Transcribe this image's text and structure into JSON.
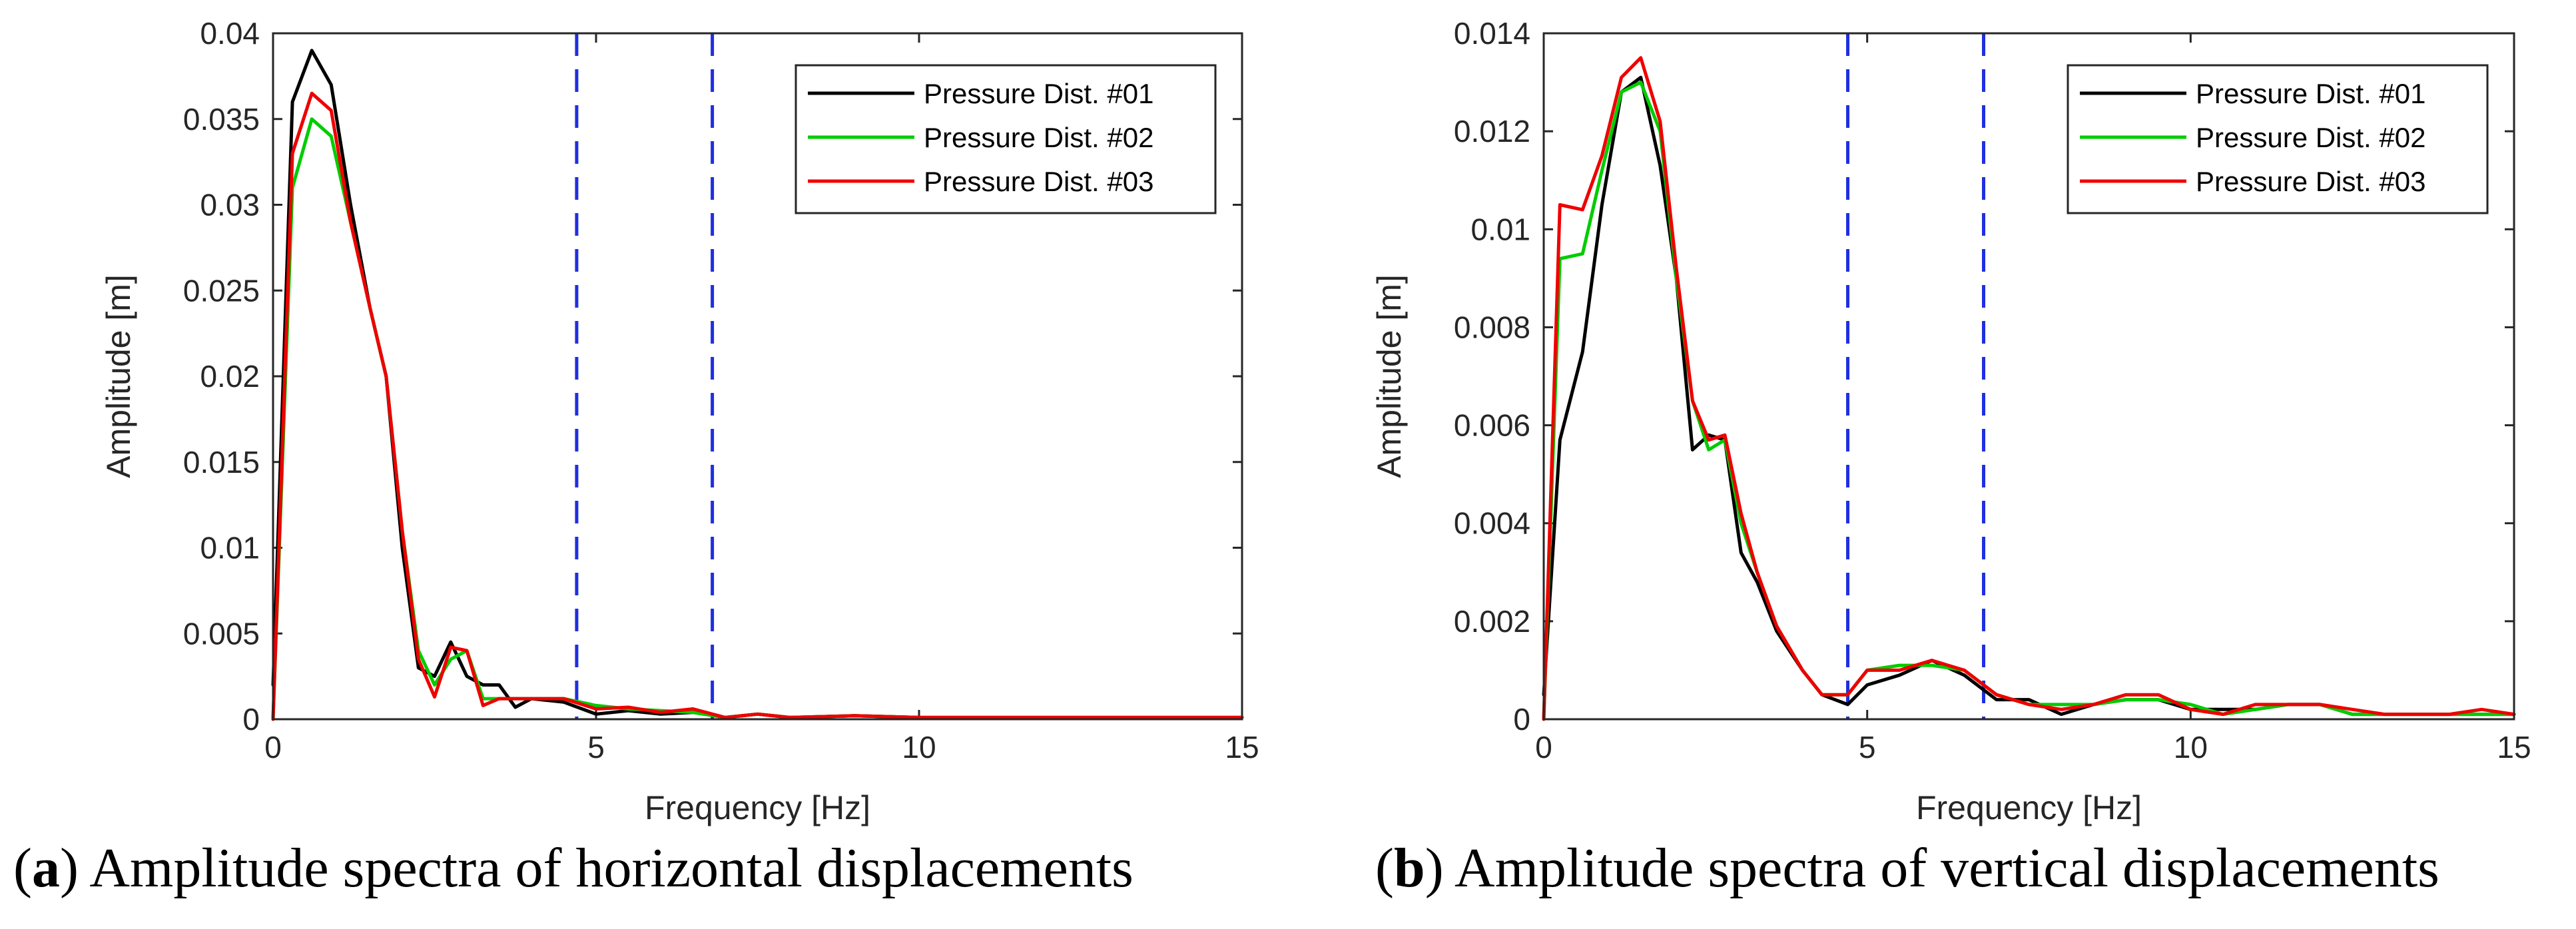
{
  "chart_data": [
    {
      "type": "line",
      "panel": "a",
      "caption_letter": "a",
      "caption_text": "Amplitude spectra of horizontal displacements",
      "xlabel": "Frequency [Hz]",
      "ylabel": "Amplitude [m]",
      "xlim": [
        0,
        15
      ],
      "ylim": [
        0,
        0.04
      ],
      "xticks": [
        0,
        5,
        10,
        15
      ],
      "xtick_labels": [
        "0",
        "5",
        "10",
        "15"
      ],
      "yticks": [
        0,
        0.005,
        0.01,
        0.015,
        0.02,
        0.025,
        0.03,
        0.035,
        0.04
      ],
      "ytick_labels": [
        "0",
        "0.005",
        "0.01",
        "0.015",
        "0.02",
        "0.025",
        "0.03",
        "0.035",
        "0.04"
      ],
      "vlines": [
        4.7,
        6.8
      ],
      "legend_position": "top-right",
      "series": [
        {
          "name": "Pressure Dist. #01",
          "color": "#000000",
          "x": [
            0,
            0.3,
            0.6,
            0.9,
            1.2,
            1.5,
            1.75,
            2.0,
            2.25,
            2.5,
            2.75,
            3.0,
            3.25,
            3.5,
            3.75,
            4.0,
            4.5,
            5.0,
            5.5,
            6.0,
            6.5,
            7.0,
            7.5,
            8.0,
            9.0,
            10.0,
            11.0,
            12.0,
            13.0,
            14.0,
            15.0
          ],
          "y": [
            0.002,
            0.036,
            0.039,
            0.037,
            0.03,
            0.024,
            0.02,
            0.01,
            0.003,
            0.0025,
            0.0045,
            0.0025,
            0.002,
            0.002,
            0.0007,
            0.0012,
            0.001,
            0.0003,
            0.0005,
            0.0003,
            0.0004,
            0.0001,
            0.0003,
            0.0001,
            0.0002,
            0.0001,
            0.0001,
            0.0001,
            0.0001,
            0.0001,
            0.0001
          ]
        },
        {
          "name": "Pressure Dist. #02",
          "color": "#00cc00",
          "x": [
            0,
            0.3,
            0.6,
            0.9,
            1.2,
            1.5,
            1.75,
            2.0,
            2.25,
            2.5,
            2.75,
            3.0,
            3.25,
            3.5,
            3.75,
            4.0,
            4.5,
            5.0,
            5.5,
            6.0,
            6.5,
            7.0,
            7.5,
            8.0,
            9.0,
            10.0,
            11.0,
            12.0,
            13.0,
            14.0,
            15.0
          ],
          "y": [
            0.0,
            0.031,
            0.035,
            0.034,
            0.029,
            0.024,
            0.02,
            0.011,
            0.004,
            0.002,
            0.0035,
            0.004,
            0.0012,
            0.0012,
            0.0012,
            0.0012,
            0.0012,
            0.0008,
            0.0006,
            0.0005,
            0.0004,
            0.0001,
            0.0003,
            0.0001,
            0.0002,
            0.0001,
            0.0001,
            0.0001,
            0.0001,
            0.0001,
            0.0001
          ]
        },
        {
          "name": "Pressure Dist. #03",
          "color": "#ee0000",
          "x": [
            0,
            0.3,
            0.6,
            0.9,
            1.2,
            1.5,
            1.75,
            2.0,
            2.25,
            2.5,
            2.75,
            3.0,
            3.25,
            3.5,
            3.75,
            4.0,
            4.5,
            5.0,
            5.5,
            6.0,
            6.5,
            7.0,
            7.5,
            8.0,
            9.0,
            10.0,
            11.0,
            12.0,
            13.0,
            14.0,
            15.0
          ],
          "y": [
            0.0,
            0.033,
            0.0365,
            0.0355,
            0.029,
            0.024,
            0.02,
            0.011,
            0.0035,
            0.0013,
            0.0042,
            0.004,
            0.0008,
            0.0012,
            0.0012,
            0.0012,
            0.0012,
            0.0006,
            0.0007,
            0.0004,
            0.0006,
            0.0001,
            0.0003,
            0.0001,
            0.0002,
            0.0001,
            0.0001,
            0.0001,
            0.0001,
            0.0001,
            0.0001
          ]
        }
      ]
    },
    {
      "type": "line",
      "panel": "b",
      "caption_letter": "b",
      "caption_text": "Amplitude spectra of vertical displacements",
      "xlabel": "Frequency [Hz]",
      "ylabel": "Amplitude [m]",
      "xlim": [
        0,
        15
      ],
      "ylim": [
        0,
        0.014
      ],
      "xticks": [
        0,
        5,
        10,
        15
      ],
      "xtick_labels": [
        "0",
        "5",
        "10",
        "15"
      ],
      "yticks": [
        0,
        0.002,
        0.004,
        0.006,
        0.008,
        0.01,
        0.012,
        0.014
      ],
      "ytick_labels": [
        "0",
        "0.002",
        "0.004",
        "0.006",
        "0.008",
        "0.01",
        "0.012",
        "0.014"
      ],
      "vlines": [
        4.7,
        6.8
      ],
      "legend_position": "top-right",
      "series": [
        {
          "name": "Pressure Dist. #01",
          "color": "#000000",
          "x": [
            0,
            0.25,
            0.6,
            0.9,
            1.2,
            1.5,
            1.8,
            2.05,
            2.3,
            2.55,
            2.8,
            3.05,
            3.3,
            3.6,
            4.0,
            4.3,
            4.7,
            5.0,
            5.5,
            6.0,
            6.5,
            7.0,
            7.5,
            8.0,
            8.5,
            9.0,
            9.5,
            10.0,
            10.5,
            11.0,
            11.5,
            12.0,
            12.5,
            13.0,
            13.5,
            14.0,
            14.5,
            15.0
          ],
          "y": [
            0.0005,
            0.0057,
            0.0075,
            0.0105,
            0.0128,
            0.0131,
            0.0113,
            0.009,
            0.0055,
            0.0058,
            0.0057,
            0.0034,
            0.0028,
            0.0018,
            0.001,
            0.0005,
            0.0003,
            0.0007,
            0.0009,
            0.0012,
            0.0009,
            0.0004,
            0.0004,
            0.0001,
            0.0003,
            0.0004,
            0.0004,
            0.0002,
            0.0002,
            0.0002,
            0.0003,
            0.0003,
            0.0001,
            0.0001,
            0.0001,
            0.0001,
            0.0001,
            0.0001
          ]
        },
        {
          "name": "Pressure Dist. #02",
          "color": "#00cc00",
          "x": [
            0,
            0.25,
            0.6,
            0.9,
            1.2,
            1.5,
            1.8,
            2.05,
            2.3,
            2.55,
            2.8,
            3.05,
            3.3,
            3.6,
            4.0,
            4.3,
            4.7,
            5.0,
            5.5,
            6.0,
            6.5,
            7.0,
            7.5,
            8.0,
            8.5,
            9.0,
            9.5,
            10.0,
            10.5,
            11.0,
            11.5,
            12.0,
            12.5,
            13.0,
            13.5,
            14.0,
            14.5,
            15.0
          ],
          "y": [
            0.0,
            0.0094,
            0.0095,
            0.0112,
            0.0128,
            0.013,
            0.012,
            0.009,
            0.0065,
            0.0055,
            0.0057,
            0.004,
            0.003,
            0.0019,
            0.001,
            0.0005,
            0.0005,
            0.001,
            0.0011,
            0.0011,
            0.001,
            0.0005,
            0.0003,
            0.0003,
            0.0003,
            0.0004,
            0.0004,
            0.0003,
            0.0001,
            0.0002,
            0.0003,
            0.0003,
            0.0001,
            0.0001,
            0.0001,
            0.0001,
            0.0001,
            0.0001
          ]
        },
        {
          "name": "Pressure Dist. #03",
          "color": "#ee0000",
          "x": [
            0,
            0.25,
            0.6,
            0.9,
            1.2,
            1.5,
            1.8,
            2.05,
            2.3,
            2.55,
            2.8,
            3.05,
            3.3,
            3.6,
            4.0,
            4.3,
            4.7,
            5.0,
            5.5,
            6.0,
            6.5,
            7.0,
            7.5,
            8.0,
            8.5,
            9.0,
            9.5,
            10.0,
            10.5,
            11.0,
            11.5,
            12.0,
            12.5,
            13.0,
            13.5,
            14.0,
            14.5,
            15.0
          ],
          "y": [
            0.0,
            0.0105,
            0.0104,
            0.0115,
            0.0131,
            0.0135,
            0.0122,
            0.0092,
            0.0065,
            0.0057,
            0.0058,
            0.0042,
            0.003,
            0.0019,
            0.001,
            0.0005,
            0.0005,
            0.001,
            0.001,
            0.0012,
            0.001,
            0.0005,
            0.0003,
            0.0002,
            0.0003,
            0.0005,
            0.0005,
            0.0002,
            0.0001,
            0.0003,
            0.0003,
            0.0003,
            0.0002,
            0.0001,
            0.0001,
            0.0001,
            0.0002,
            0.0001
          ]
        }
      ]
    }
  ]
}
